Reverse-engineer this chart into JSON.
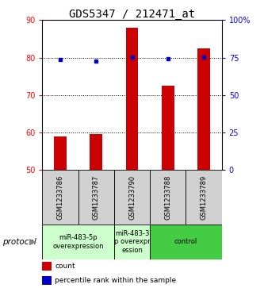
{
  "title": "GDS5347 / 212471_at",
  "samples": [
    "GSM1233786",
    "GSM1233787",
    "GSM1233790",
    "GSM1233788",
    "GSM1233789"
  ],
  "counts": [
    59.0,
    59.5,
    88.0,
    72.5,
    82.5
  ],
  "percentiles": [
    73.5,
    72.5,
    75.5,
    74.5,
    75.5
  ],
  "baseline": 50,
  "ylim_left": [
    50,
    90
  ],
  "ylim_right": [
    0,
    100
  ],
  "yticks_left": [
    50,
    60,
    70,
    80,
    90
  ],
  "yticks_right": [
    0,
    25,
    50,
    75,
    100
  ],
  "ytick_labels_right": [
    "0",
    "25",
    "50",
    "75",
    "100%"
  ],
  "bar_color": "#cc0000",
  "dot_color": "#0000cc",
  "protocol_groups": [
    {
      "label": "miR-483-5p\noverexpression",
      "start": 0,
      "end": 2,
      "color": "#ccffcc"
    },
    {
      "label": "miR-483-3\np overexpr\nession",
      "start": 2,
      "end": 3,
      "color": "#ccffcc"
    },
    {
      "label": "control",
      "start": 3,
      "end": 5,
      "color": "#44cc44"
    }
  ],
  "protocol_label": "protocol",
  "legend_count_label": "count",
  "legend_percentile_label": "percentile rank within the sample",
  "title_fontsize": 10,
  "tick_fontsize": 7,
  "sample_fontsize": 6,
  "protocol_fontsize": 6,
  "legend_fontsize": 6.5
}
